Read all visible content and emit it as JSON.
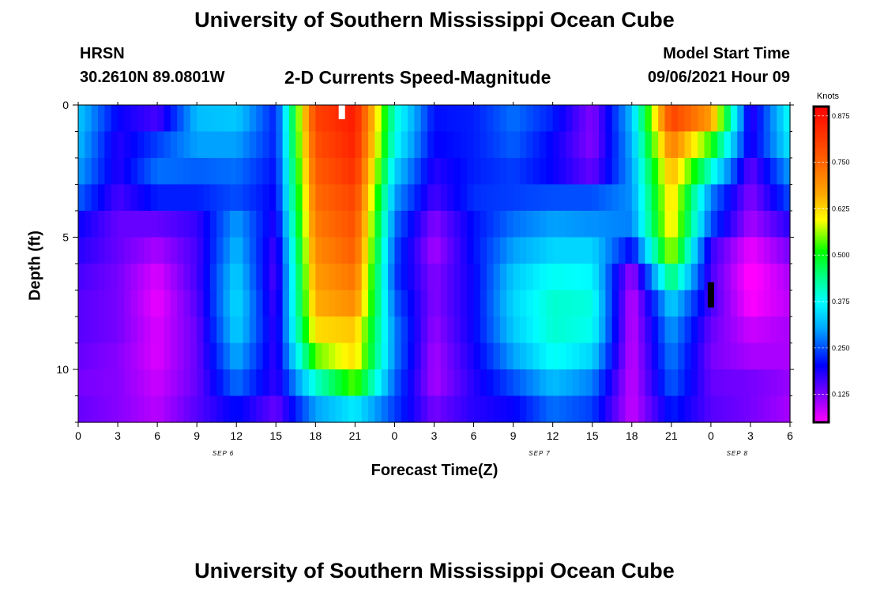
{
  "header": {
    "title": "University of Southern Mississippi Ocean Cube",
    "station": "HRSN",
    "coords": "30.2610N  89.0801W",
    "chart_title": "2-D Currents Speed-Magnitude",
    "model_label": "Model Start Time",
    "model_time": "09/06/2021 Hour 09"
  },
  "footer": {
    "title": "University of Southern Mississippi Ocean Cube"
  },
  "chart_data": {
    "type": "heatmap",
    "title": "2-D Currents Speed-Magnitude",
    "xlabel": "Forecast Time(Z)",
    "ylabel": "Depth (ft)",
    "x_ticks": [
      "0",
      "3",
      "6",
      "9",
      "12",
      "15",
      "18",
      "21",
      "0",
      "3",
      "6",
      "9",
      "12",
      "15",
      "18",
      "21",
      "0",
      "3",
      "6"
    ],
    "date_labels": [
      {
        "label": "SEP 6",
        "hour": 11
      },
      {
        "label": "SEP 7",
        "hour": 35
      },
      {
        "label": "SEP 8",
        "hour": 50
      }
    ],
    "xlim": [
      0,
      54
    ],
    "y_ticks": [
      "0",
      "5",
      "10"
    ],
    "ylim": [
      0,
      12
    ],
    "colorbar": {
      "label": "Knots",
      "ticks": [
        "0.875",
        "0.750",
        "0.625",
        "0.500",
        "0.375",
        "0.250",
        "0.125"
      ],
      "range": [
        0.05,
        0.9
      ]
    },
    "depth_levels_ft": [
      0.5,
      1.5,
      2.5,
      3.5,
      4.5,
      5.5,
      6.5,
      7.5,
      8.5,
      9.5,
      10.5,
      11.5
    ],
    "hour_columns": [
      0,
      3,
      6,
      9,
      12,
      15,
      18,
      21,
      24,
      27,
      30,
      33,
      36,
      39,
      42,
      45,
      48,
      51,
      54
    ],
    "speed_knots": [
      [
        0.33,
        0.2,
        0.16,
        0.32,
        0.33,
        0.22,
        0.8,
        0.86,
        0.4,
        0.21,
        0.22,
        0.27,
        0.22,
        0.12,
        0.32,
        0.8,
        0.68,
        0.17,
        0.38
      ],
      [
        0.32,
        0.18,
        0.24,
        0.3,
        0.3,
        0.22,
        0.78,
        0.85,
        0.38,
        0.2,
        0.22,
        0.26,
        0.2,
        0.12,
        0.31,
        0.72,
        0.52,
        0.18,
        0.36
      ],
      [
        0.3,
        0.18,
        0.27,
        0.26,
        0.27,
        0.21,
        0.76,
        0.83,
        0.34,
        0.18,
        0.22,
        0.24,
        0.2,
        0.14,
        0.3,
        0.66,
        0.4,
        0.14,
        0.3
      ],
      [
        0.26,
        0.16,
        0.22,
        0.22,
        0.25,
        0.2,
        0.74,
        0.8,
        0.3,
        0.16,
        0.23,
        0.24,
        0.25,
        0.25,
        0.29,
        0.63,
        0.28,
        0.12,
        0.25
      ],
      [
        0.2,
        0.14,
        0.14,
        0.17,
        0.3,
        0.18,
        0.72,
        0.78,
        0.27,
        0.12,
        0.21,
        0.27,
        0.3,
        0.29,
        0.28,
        0.62,
        0.25,
        0.1,
        0.18
      ],
      [
        0.18,
        0.14,
        0.1,
        0.16,
        0.32,
        0.16,
        0.7,
        0.76,
        0.25,
        0.1,
        0.21,
        0.3,
        0.34,
        0.34,
        0.2,
        0.58,
        0.17,
        0.06,
        0.13
      ],
      [
        0.16,
        0.13,
        0.07,
        0.16,
        0.34,
        0.15,
        0.68,
        0.73,
        0.24,
        0.12,
        0.2,
        0.33,
        0.38,
        0.37,
        0.1,
        0.46,
        0.16,
        0.04,
        0.1
      ],
      [
        0.15,
        0.13,
        0.06,
        0.15,
        0.35,
        0.16,
        0.66,
        0.7,
        0.26,
        0.12,
        0.2,
        0.34,
        0.4,
        0.39,
        0.08,
        0.34,
        0.16,
        0.05,
        0.09
      ],
      [
        0.15,
        0.13,
        0.07,
        0.14,
        0.34,
        0.17,
        0.62,
        0.64,
        0.28,
        0.11,
        0.2,
        0.33,
        0.4,
        0.38,
        0.08,
        0.3,
        0.14,
        0.08,
        0.1
      ],
      [
        0.14,
        0.12,
        0.07,
        0.14,
        0.31,
        0.17,
        0.54,
        0.62,
        0.28,
        0.1,
        0.19,
        0.3,
        0.38,
        0.34,
        0.08,
        0.28,
        0.13,
        0.1,
        0.1
      ],
      [
        0.13,
        0.12,
        0.08,
        0.14,
        0.27,
        0.17,
        0.4,
        0.54,
        0.26,
        0.1,
        0.18,
        0.25,
        0.32,
        0.28,
        0.08,
        0.26,
        0.14,
        0.13,
        0.11
      ],
      [
        0.14,
        0.12,
        0.09,
        0.15,
        0.21,
        0.14,
        0.3,
        0.36,
        0.24,
        0.13,
        0.18,
        0.2,
        0.27,
        0.24,
        0.08,
        0.22,
        0.15,
        0.13,
        0.1
      ]
    ],
    "markers": [
      {
        "hour": 20,
        "depth": 0.3,
        "color": "#ffffff"
      },
      {
        "hour": 48,
        "depth": 7.0,
        "color": "#000000"
      }
    ]
  }
}
